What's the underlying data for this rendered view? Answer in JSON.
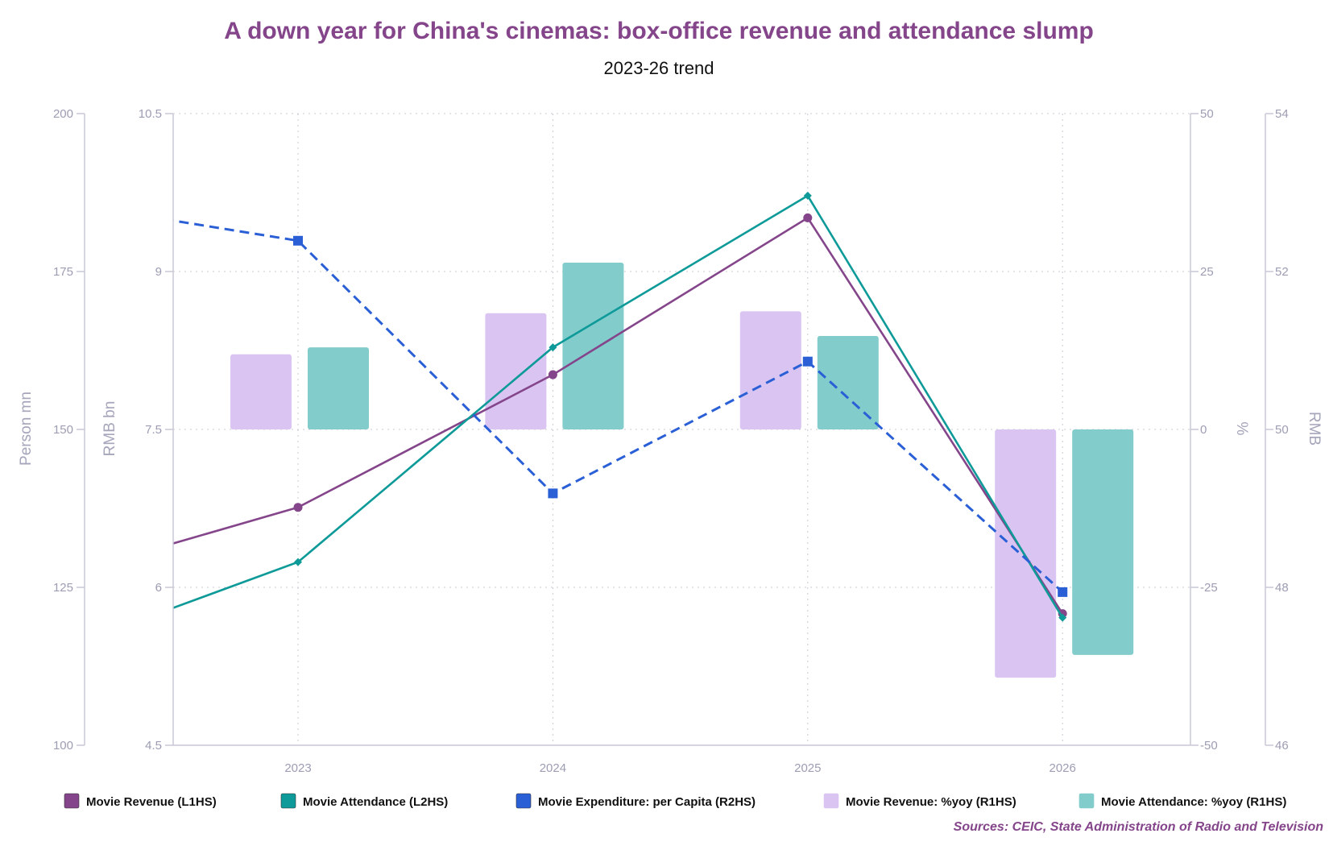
{
  "chart_data": {
    "type": "bar+line",
    "title": "A down year for China's cinemas: box-office revenue and attendance slump",
    "subtitle": "2023-26 trend",
    "source": "Sources: CEIC, State Administration of Radio and Television",
    "categories": [
      "2023",
      "2024",
      "2025",
      "2026"
    ],
    "axes": {
      "L1": {
        "label": "RMB bn",
        "ticks": [
          "10.5",
          "9",
          "7.5",
          "6",
          "4.5"
        ],
        "range": [
          4.5,
          10.5
        ]
      },
      "L2": {
        "label": "Person mn",
        "ticks": [
          "200",
          "175",
          "150",
          "125",
          "100"
        ],
        "range": [
          100,
          200
        ]
      },
      "R1": {
        "label": "%",
        "ticks": [
          "50",
          "25",
          "0",
          "-25",
          "-50"
        ],
        "range": [
          -50,
          50
        ]
      },
      "R2": {
        "label": "RMB",
        "ticks": [
          "54",
          "52",
          "50",
          "48",
          "46"
        ],
        "range": [
          46,
          54
        ]
      }
    },
    "grid": true,
    "legend_position": "bottom",
    "series": [
      {
        "name": "Movie Revenue (L1HS)",
        "type": "line",
        "axis": "L1",
        "color": "#84458a",
        "marker": "circle",
        "prior_value": 6.06,
        "values": [
          6.76,
          8.02,
          9.51,
          5.75
        ]
      },
      {
        "name": "Movie Attendance (L2HS)",
        "type": "line",
        "axis": "L2",
        "color": "#0e9a98",
        "marker": "diamond",
        "prior_value": 114.2,
        "values": [
          129.0,
          163.0,
          187.0,
          120.2
        ]
      },
      {
        "name": "Movie Expenditure: per Capita (R2HS)",
        "type": "line",
        "dashed": true,
        "axis": "R2",
        "color": "#2a5fd6",
        "marker": "square",
        "prior_value": 52.91,
        "values": [
          52.39,
          49.19,
          50.86,
          47.94
        ]
      },
      {
        "name": "Movie Revenue: %yoy (R1HS)",
        "type": "bar",
        "axis": "R1",
        "color": "#d9c4f2",
        "values": [
          11.9,
          18.4,
          18.7,
          -39.3
        ]
      },
      {
        "name": "Movie Attendance: %yoy (R1HS)",
        "type": "bar",
        "axis": "R1",
        "color": "#82cccc",
        "values": [
          13.0,
          26.4,
          14.8,
          -35.7
        ]
      }
    ]
  }
}
